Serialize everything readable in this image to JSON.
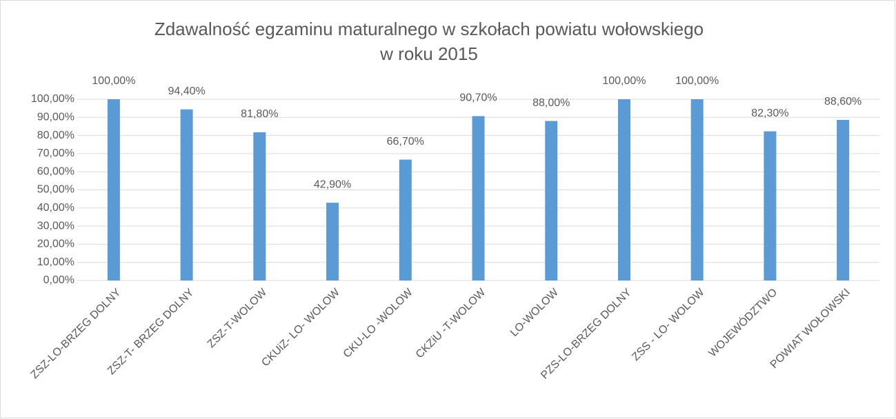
{
  "chart_data": {
    "type": "bar",
    "title": [
      "Zdawalność egzaminu maturalnego w szkołach powiatu wołowskiego",
      "w roku 2015"
    ],
    "categories": [
      "ZSZ-LO-BRZEG DOLNY",
      "ZSZ-T- BRZEG DOLNY",
      "ZSZ-T-WOLOW",
      "CKUiZ- LO- WOLOW",
      "CKU-LO -WOLOW",
      "CKZiU -T-WOLOW",
      "LO-WOLOW",
      "PZS-LO-BRZEG DOLNY",
      "ZSS - LO- WOLOW",
      "WOJEWÓDZTWO",
      "POWIAT WOŁOWSKI"
    ],
    "values": [
      100,
      94.4,
      81.8,
      42.9,
      66.7,
      90.7,
      88,
      100,
      100,
      82.3,
      88.6
    ],
    "value_labels": [
      "100,00%",
      "94,40%",
      "81,80%",
      "42,90%",
      "66,70%",
      "90,70%",
      "88,00%",
      "100,00%",
      "100,00%",
      "82,30%",
      "88,60%"
    ],
    "color": "#5b9bd5",
    "ylim": [
      0,
      100
    ],
    "yticks": [
      {
        "value": 0,
        "label": "0,00%"
      },
      {
        "value": 10,
        "label": "10,00%"
      },
      {
        "value": 20,
        "label": "20,00%"
      },
      {
        "value": 30,
        "label": "30,00%"
      },
      {
        "value": 40,
        "label": "40,00%"
      },
      {
        "value": 50,
        "label": "50,00%"
      },
      {
        "value": 60,
        "label": "60,00%"
      },
      {
        "value": 70,
        "label": "70,00%"
      },
      {
        "value": 80,
        "label": "80,00%"
      },
      {
        "value": 90,
        "label": "90,00%"
      },
      {
        "value": 100,
        "label": "100,00%"
      }
    ],
    "grid": true
  }
}
